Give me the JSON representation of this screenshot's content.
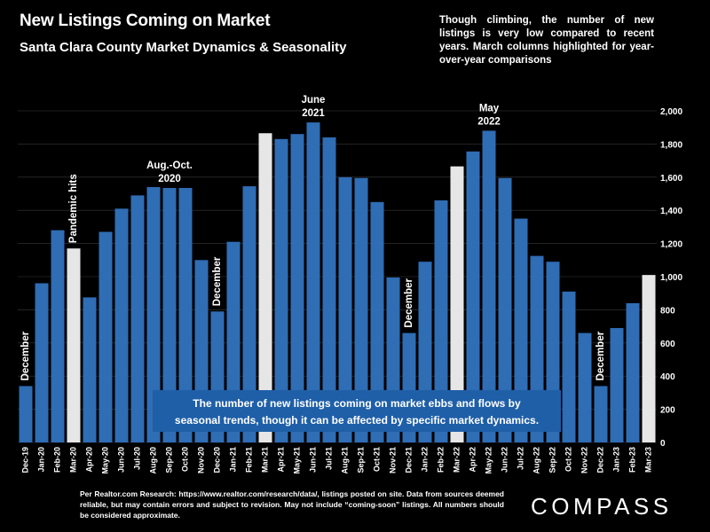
{
  "title": "New Listings Coming on Market",
  "subtitle": "Santa Clara County Market Dynamics & Seasonality",
  "note": "Though climbing, the number of new listings is very low compared to recent years. March columns highlighted for year-over-year comparisons",
  "source": "Per Realtor.com Research: https://www.realtor.com/research/data/, listings posted on site. Data from sources deemed reliable, but may contain errors and subject to revision. May not include “coming-soon” listings. All numbers should be considered approximate.",
  "logo": "COMPASS",
  "center_box": {
    "line1": "The number of new listings coming on market ebbs and flows by",
    "line2": "seasonal trends, though it can be affected by specific market dynamics."
  },
  "colors": {
    "bar": "#2f6db5",
    "highlight": "#e6e6e6",
    "background": "#000000",
    "text_box": "#1f5fa8"
  },
  "chart_data": {
    "type": "bar",
    "categories": [
      "Dec-19",
      "Jan-20",
      "Feb-20",
      "Mar-20",
      "Apr-20",
      "May-20",
      "Jun-20",
      "Jul-20",
      "Aug-20",
      "Sep-20",
      "Oct-20",
      "Nov-20",
      "Dec-20",
      "Jan-21",
      "Feb-21",
      "Mar-21",
      "Apr-21",
      "May-21",
      "Jun-21",
      "Jul-21",
      "Aug-21",
      "Sep-21",
      "Oct-21",
      "Nov-21",
      "Dec-21",
      "Jan-22",
      "Feb-22",
      "Mar-22",
      "Apr-22",
      "May-22",
      "Jun-22",
      "Jul-22",
      "Aug-22",
      "Sep-22",
      "Oct-22",
      "Nov-22",
      "Dec-22",
      "Jan-23",
      "Feb-23",
      "Mar-23"
    ],
    "values": [
      340,
      960,
      1280,
      1170,
      875,
      1270,
      1410,
      1490,
      1540,
      1535,
      1535,
      1100,
      790,
      1210,
      1545,
      1865,
      1830,
      1860,
      1930,
      1840,
      1600,
      1595,
      1450,
      995,
      660,
      1090,
      1460,
      1665,
      1755,
      1880,
      1595,
      1350,
      1125,
      1090,
      910,
      660,
      340,
      690,
      840,
      1010
    ],
    "highlighted": [
      "Mar-20",
      "Mar-21",
      "Mar-22",
      "Mar-23"
    ],
    "ylim": [
      0,
      2000
    ],
    "yticks": [
      0,
      200,
      400,
      600,
      800,
      1000,
      1200,
      1400,
      1600,
      1800,
      2000
    ],
    "ytick_labels": [
      "0",
      "200",
      "400",
      "600",
      "800",
      "1,000",
      "1,200",
      "1,400",
      "1,600",
      "1,800",
      "2,000"
    ],
    "annotations": [
      {
        "text": "December",
        "category": "Dec-19",
        "orientation": "vertical"
      },
      {
        "text": "Pandemic hits",
        "category": "Mar-20",
        "orientation": "vertical"
      },
      {
        "text": "Aug.-Oct.",
        "text2": "2020",
        "category": "Sep-20",
        "orientation": "horizontal"
      },
      {
        "text": "December",
        "category": "Dec-20",
        "orientation": "vertical"
      },
      {
        "text": "June",
        "text2": "2021",
        "category": "Jun-21",
        "orientation": "horizontal"
      },
      {
        "text": "December",
        "category": "Dec-21",
        "orientation": "vertical"
      },
      {
        "text": "May",
        "text2": "2022",
        "category": "May-22",
        "orientation": "horizontal"
      },
      {
        "text": "December",
        "category": "Dec-22",
        "orientation": "vertical"
      }
    ]
  }
}
